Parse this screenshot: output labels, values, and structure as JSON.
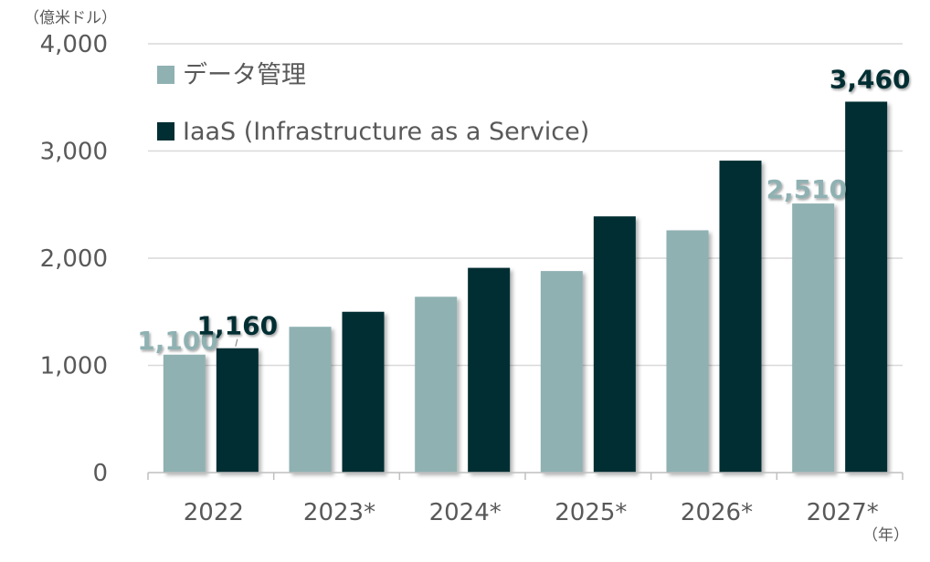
{
  "chart_data": {
    "type": "bar",
    "y_unit": "（億米ドル）",
    "x_unit": "（年）",
    "categories": [
      "2022",
      "2023*",
      "2024*",
      "2025*",
      "2026*",
      "2027*"
    ],
    "ylim": [
      0,
      4000
    ],
    "yticks": [
      0,
      1000,
      2000,
      3000,
      4000
    ],
    "ytick_labels": [
      "0",
      "1,000",
      "2,000",
      "3,000",
      "4,000"
    ],
    "grid": true,
    "legend_position": "top-left",
    "series": [
      {
        "name": "データ管理",
        "color": "#8fb1b2",
        "values": [
          1100,
          1360,
          1640,
          1880,
          2260,
          2510
        ],
        "data_labels": [
          "1,100",
          "",
          "",
          "",
          "",
          "2,510"
        ]
      },
      {
        "name": "IaaS (Infrastructure as a Service)",
        "color": "#002e33",
        "values": [
          1160,
          1500,
          1910,
          2390,
          2910,
          3460
        ],
        "data_labels": [
          "1,160",
          "",
          "",
          "",
          "",
          "3,460"
        ]
      }
    ]
  }
}
